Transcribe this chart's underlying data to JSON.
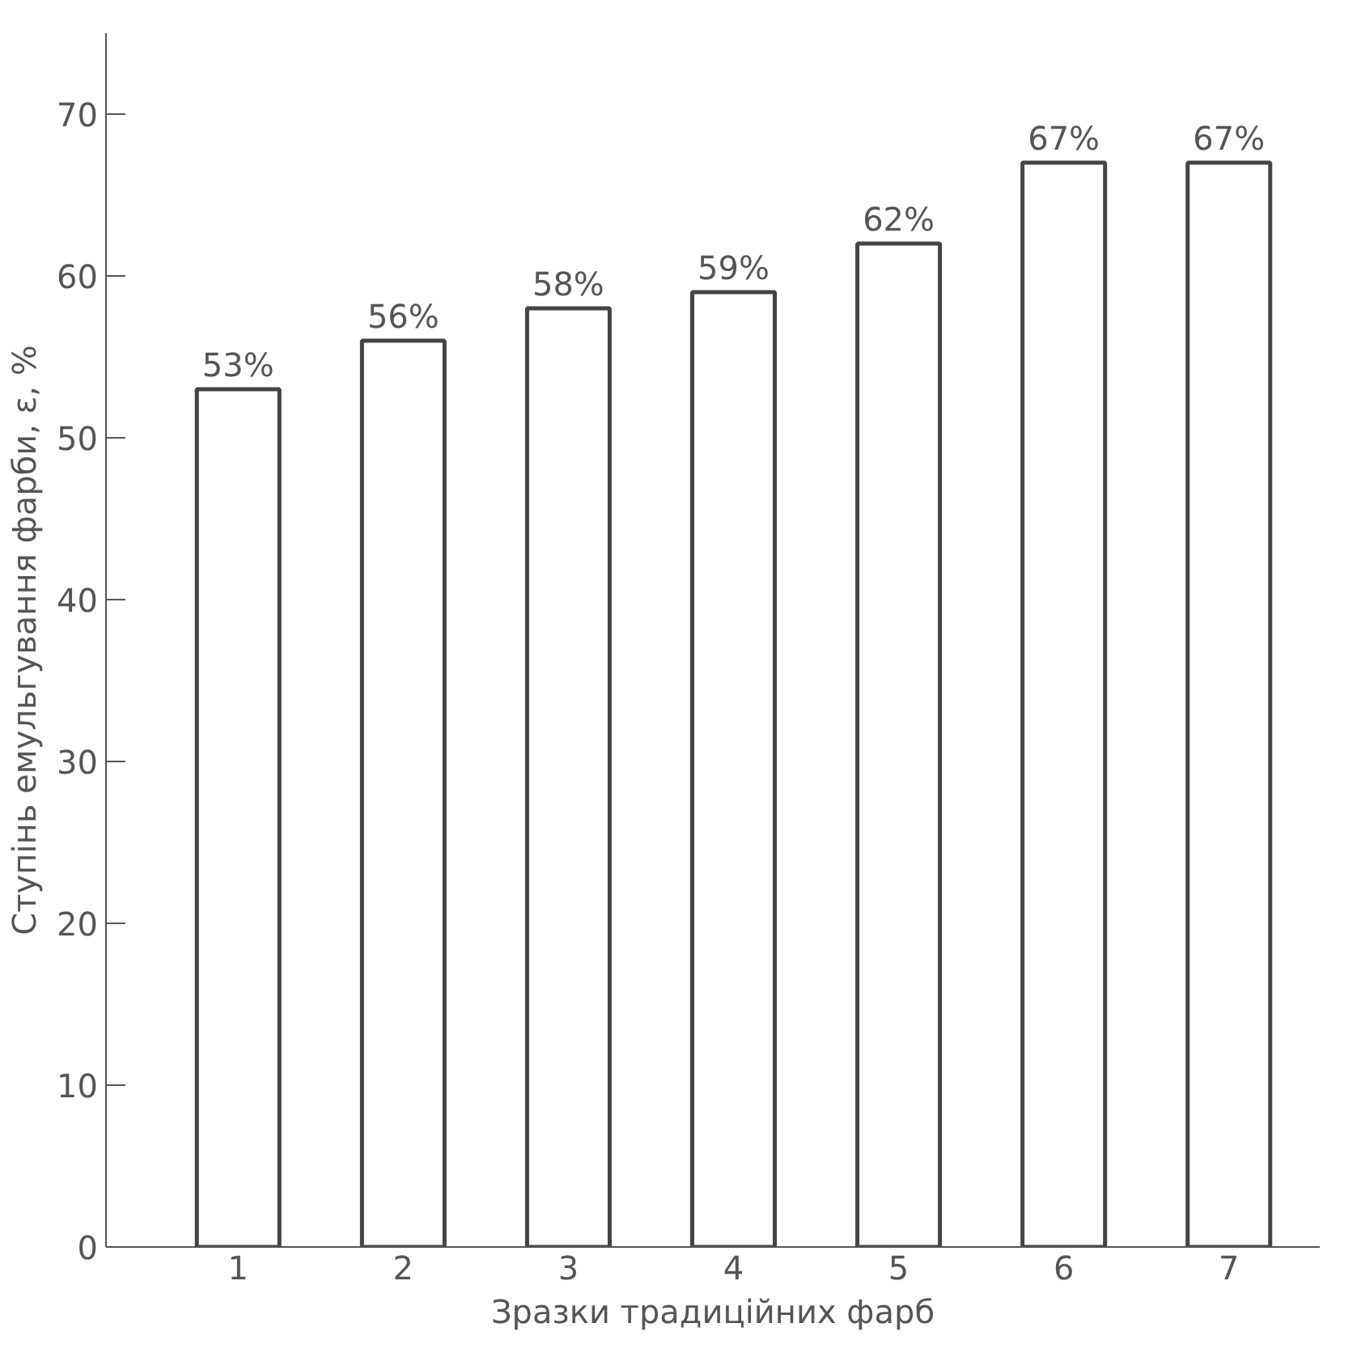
{
  "chart_data": {
    "type": "bar",
    "xlabel": "Зразки традиційних фарб",
    "ylabel": "Ступінь емульгування фарби, ε, %",
    "categories": [
      "1",
      "2",
      "3",
      "4",
      "5",
      "6",
      "7"
    ],
    "values": [
      53,
      56,
      58,
      59,
      62,
      67,
      67
    ],
    "value_labels": [
      "53%",
      "56%",
      "58%",
      "59%",
      "62%",
      "67%",
      "67%"
    ],
    "color": "#ffffff",
    "ylim": [
      0,
      75
    ],
    "yticks": [
      0,
      10,
      20,
      30,
      40,
      50,
      60,
      70
    ],
    "grid": false
  }
}
